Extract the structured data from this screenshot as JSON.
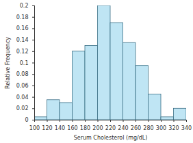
{
  "chart_data": {
    "type": "histogram",
    "xlabel": "Serum Cholesterol (mg/dL)",
    "ylabel": "Relative Frequency",
    "bins": [
      100,
      120,
      140,
      160,
      180,
      200,
      220,
      240,
      260,
      280,
      300,
      320,
      340
    ],
    "values": [
      0.005,
      0.035,
      0.03,
      0.12,
      0.13,
      0.2,
      0.17,
      0.135,
      0.095,
      0.045,
      0.005,
      0.02
    ],
    "color": "#bfe5f4",
    "xlim": [
      100,
      340
    ],
    "xticks": [
      100,
      120,
      140,
      160,
      180,
      200,
      220,
      240,
      260,
      280,
      300,
      320,
      340
    ],
    "ylim": [
      0,
      0.2
    ],
    "yticks": [
      0,
      0.02,
      0.04,
      0.06,
      0.08,
      0.1,
      0.12,
      0.14,
      0.16,
      0.18,
      0.2
    ],
    "grid": false
  }
}
